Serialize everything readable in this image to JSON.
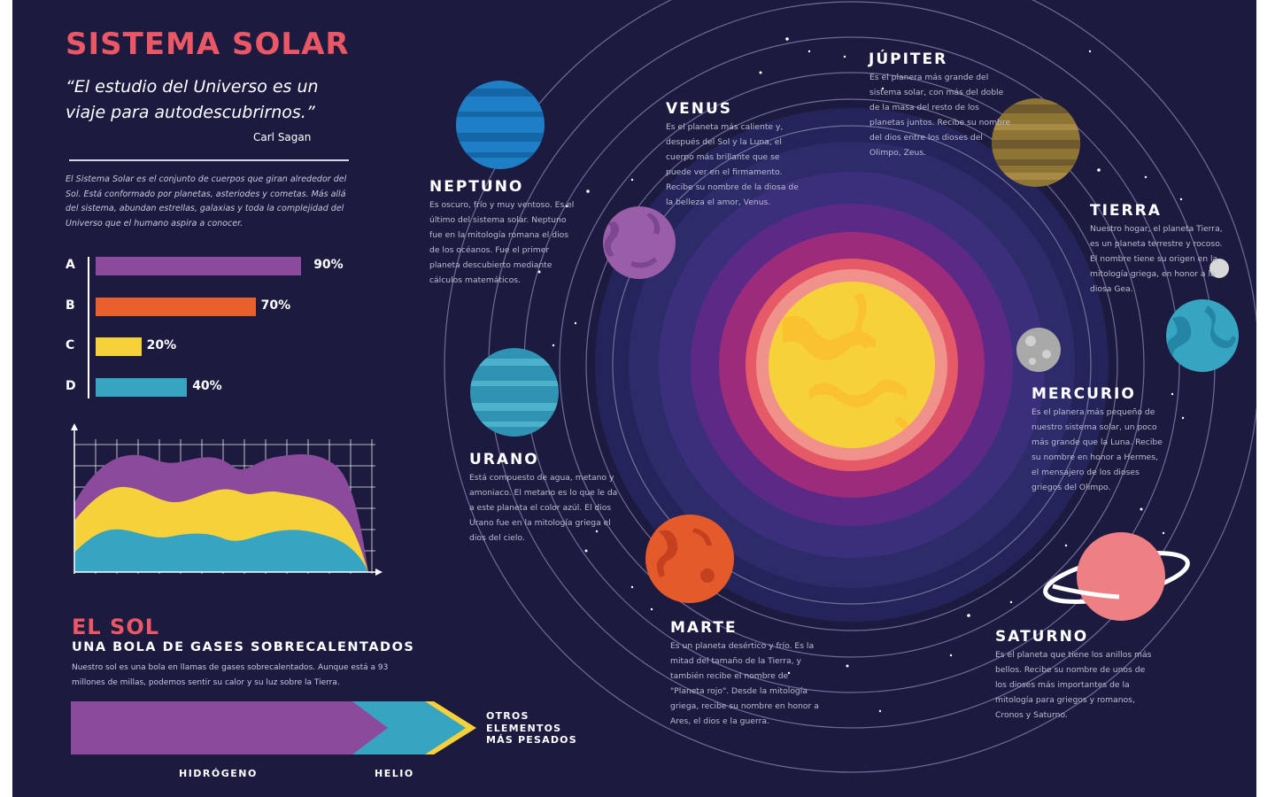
{
  "title": "SISTEMA SOLAR",
  "quote": {
    "text": "“El estudio del Universo es un viaje para autodescubrirnos.”",
    "author": "Carl Sagan"
  },
  "intro": "El Sistema Solar es el conjunto de cuerpos que giran alrededor del Sol. Está conformado por planetas, asteriodes y cometas. Más allá del sistema, abundan estrellas, galaxias y toda la complejidad del Universo que el humano aspira a conocer.",
  "bars": [
    {
      "label": "A",
      "value": 90,
      "value_label": "90%",
      "color": "#8b4a9c"
    },
    {
      "label": "B",
      "value": 70,
      "value_label": "70%",
      "color": "#e8612c"
    },
    {
      "label": "C",
      "value": 20,
      "value_label": "20%",
      "color": "#f7d13a"
    },
    {
      "label": "D",
      "value": 40,
      "value_label": "40%",
      "color": "#36a5c1"
    }
  ],
  "area_chart": {
    "colors": {
      "top": "#8b4a9c",
      "middle": "#f7d13a",
      "bottom": "#36a5c1"
    },
    "grid": true
  },
  "sun": {
    "heading": "EL SOL",
    "subheading": "UNA BOLA DE GASES SOBRECALENTADOS",
    "description": "Nuestro sol es una bola en llamas de gases sobrecalentados. Aunque está a 93 millones de millas, podemos sentir su calor y su luz sobre la Tierra.",
    "composition": {
      "segments": [
        {
          "label": "HIDRÓGENO",
          "color": "#8b4a9c"
        },
        {
          "label": "HELIO",
          "color": "#36a5c1"
        },
        {
          "label": "OTROS ELEMENTOS MÁS PESADOS",
          "color": "#f7d13a"
        }
      ]
    }
  },
  "planets": {
    "neptuno": {
      "name": "NEPTUNO",
      "desc": "Es oscuro, frío y muy ventoso. Es el último del sistema solar. Neptuno fue en la mitología romana el dios de los océanos. Fue el primer planeta descubierto mediante cálculos matemáticos.",
      "color": "#1f7fc6"
    },
    "venus": {
      "name": "VENUS",
      "desc": "Es el planeta más caliente y, después del Sol y la Luna, el cuerpo más brillante que se puede ver en el firmamento. Recibe su nombre de la diosa de la belleza el amor, Venus.",
      "color": "#9a5ea8"
    },
    "jupiter": {
      "name": "JÚPITER",
      "desc": "Es el planera más grande del sistema solar, con más del doble de la masa del resto de los planetas juntos. Recibe su nombre del dios entre los dioses del Olimpo, Zeus.",
      "color": "#6e5a2e"
    },
    "tierra": {
      "name": "TIERRA",
      "desc": "Nuestro hogar, el planeta Tierra, es un planeta terrestre y rocoso. El nombre tiene su origen en la mitología griega, en honor a la diosa Gea.",
      "color": "#36a5c1"
    },
    "mercurio": {
      "name": "MERCURIO",
      "desc": "Es el planera más pequeño de nuestro sistema solar, un poco más grande que la Luna. Recibe su nombre en honor a Hermes, el mensajero de los dioses griegos del Olimpo.",
      "color": "#a9a9a9"
    },
    "urano": {
      "name": "URANO",
      "desc": "Está compuesto de agua, metano y amoniaco. El metano es lo que le da a este planeta el color azúl. El dios Urano fue en la mitología griega el dios del cielo.",
      "color": "#2f93b4"
    },
    "marte": {
      "name": "MARTE",
      "desc": "Es un planeta desértico y frío. Es la mitad del tamaño de la Tierra, y también recibe el nombre de \"Planeta rojo\". Desde la mitología griega, recibe su nombre en honor a Ares, el dios e la guerra.",
      "color": "#e45a2b"
    },
    "saturno": {
      "name": "SATURNO",
      "desc": "Es el planeta que tiene los anillos más bellos. Recibe su nombre de unos de los dioses más importantes de la mitología para griegos y romanos, Cronos y Saturno.",
      "color": "#ee7f84"
    }
  }
}
